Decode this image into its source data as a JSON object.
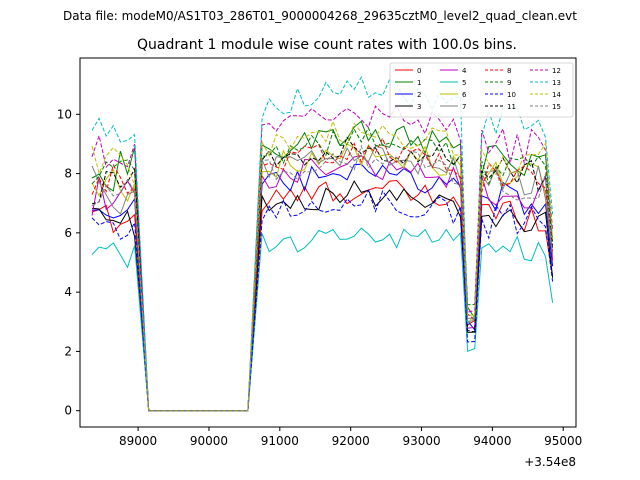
{
  "suptitle": "Data file: modeM0/AS1T03_286T01_9000004268_29635cztM0_level2_quad_clean.evt",
  "chart_data": {
    "type": "line",
    "title": "Quadrant 1 module wise count rates with 100.0s bins.",
    "xlabel": "",
    "ylabel": "",
    "x_offset_label": "+3.54e8",
    "x_offset": 354000000,
    "xlim": [
      88180,
      95180
    ],
    "ylim": [
      -0.55,
      11.9
    ],
    "xticks": [
      89000,
      90000,
      91000,
      92000,
      93000,
      94000,
      95000
    ],
    "xtick_labels": [
      "89000",
      "90000",
      "91000",
      "92000",
      "93000",
      "94000",
      "95000"
    ],
    "yticks": [
      0,
      2,
      4,
      6,
      8,
      10
    ],
    "ytick_labels": [
      "0",
      "2",
      "4",
      "6",
      "8",
      "10"
    ],
    "grid": false,
    "legend_position": "top-right",
    "legend_columns": 4,
    "bins_s": 100.0,
    "segments": [
      {
        "start": 88350,
        "end": 88950
      },
      {
        "start": 89150,
        "end": 90550
      },
      {
        "start": 90750,
        "end": 93550
      },
      {
        "start": 93650,
        "end": 93750
      },
      {
        "start": 93850,
        "end": 94850
      }
    ],
    "series": [
      {
        "name": "0",
        "color": "#ff0000",
        "dashed": false,
        "level": 7.0,
        "drop": 3.0
      },
      {
        "name": "1",
        "color": "#008000",
        "dashed": false,
        "level": 8.8,
        "drop": 3.3
      },
      {
        "name": "2",
        "color": "#0000ff",
        "dashed": false,
        "level": 7.5,
        "drop": 2.9
      },
      {
        "name": "3",
        "color": "#000000",
        "dashed": false,
        "level": 6.9,
        "drop": 2.7
      },
      {
        "name": "4",
        "color": "#c000c0",
        "dashed": false,
        "level": 7.8,
        "drop": 2.8
      },
      {
        "name": "5",
        "color": "#00bfbf",
        "dashed": false,
        "level": 5.6,
        "drop": 2.0
      },
      {
        "name": "6",
        "color": "#bfbf00",
        "dashed": false,
        "level": 8.2,
        "drop": 3.1
      },
      {
        "name": "7",
        "color": "#808080",
        "dashed": false,
        "level": 8.1,
        "drop": 3.0
      },
      {
        "name": "8",
        "color": "#ff0000",
        "dashed": true,
        "level": 8.3,
        "drop": 3.2
      },
      {
        "name": "9",
        "color": "#008000",
        "dashed": true,
        "level": 8.6,
        "drop": 3.4
      },
      {
        "name": "10",
        "color": "#0000ff",
        "dashed": true,
        "level": 6.7,
        "drop": 2.2
      },
      {
        "name": "11",
        "color": "#000000",
        "dashed": true,
        "level": 8.4,
        "drop": 2.8
      },
      {
        "name": "12",
        "color": "#c000c0",
        "dashed": true,
        "level": 9.4,
        "drop": 3.3
      },
      {
        "name": "13",
        "color": "#00bfbf",
        "dashed": true,
        "level": 10.2,
        "drop": 3.0
      },
      {
        "name": "14",
        "color": "#bfbf00",
        "dashed": true,
        "level": 8.9,
        "drop": 3.4
      },
      {
        "name": "15",
        "color": "#808080",
        "dashed": true,
        "level": 8.0,
        "drop": 3.1
      }
    ]
  }
}
